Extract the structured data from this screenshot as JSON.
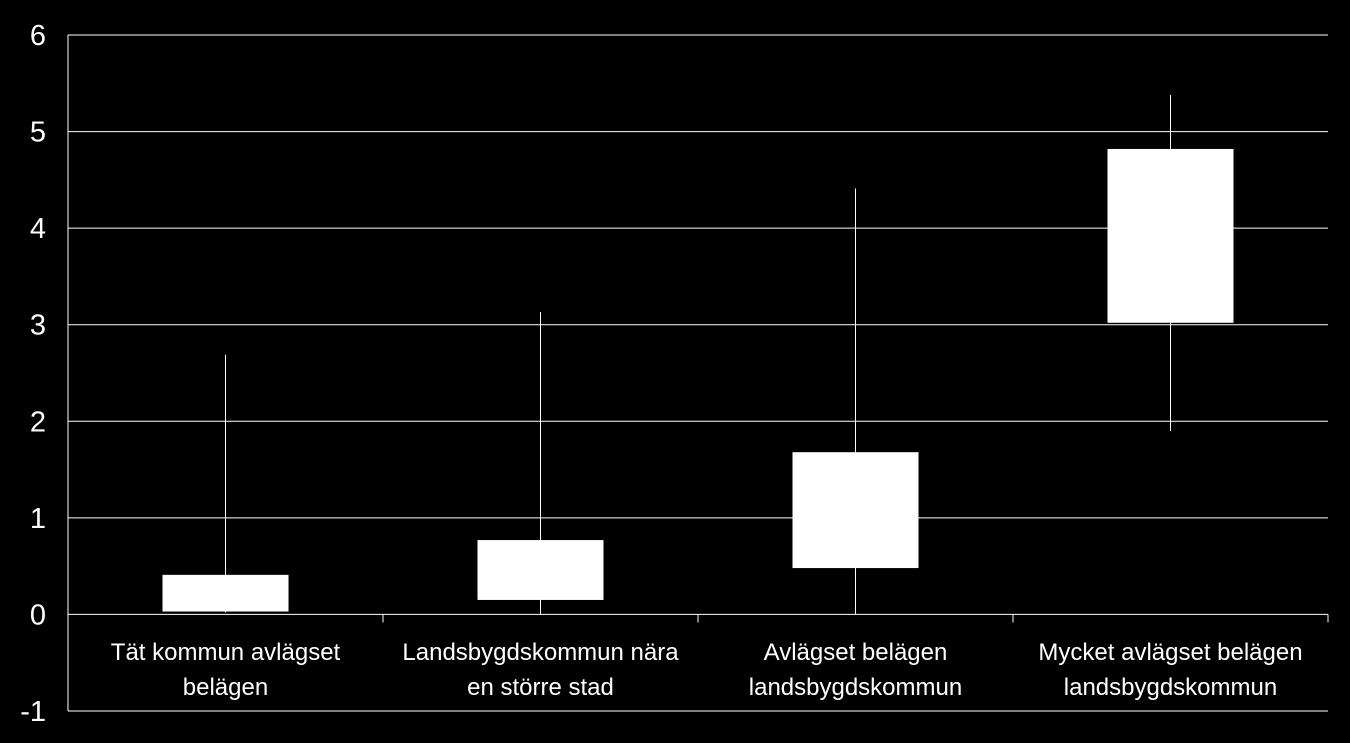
{
  "chart_data": {
    "type": "box",
    "title": "",
    "xlabel": "",
    "ylabel": "",
    "ylim": [
      -1,
      6
    ],
    "yticks": [
      "6",
      "5",
      "4",
      "3",
      "2",
      "1",
      "0",
      "-1"
    ],
    "grid": true,
    "legend": "none",
    "colors": {
      "background": "#000000",
      "box": "#ffffff",
      "grid": "#ffffff",
      "text": "#ffffff"
    },
    "categories": [
      {
        "lines": [
          "Tät kommun avlägset",
          "belägen"
        ]
      },
      {
        "lines": [
          "Landsbygdskommun nära",
          "en större stad"
        ]
      },
      {
        "lines": [
          "Avlägset belägen",
          "landsbygdskommun"
        ]
      },
      {
        "lines": [
          "Mycket avlägset belägen",
          "landsbygdskommun"
        ]
      }
    ],
    "series": [
      {
        "boxes": [
          {
            "min": 0.02,
            "q1": 0.03,
            "q3": 0.41,
            "max": 2.69
          },
          {
            "min": 0.0,
            "q1": 0.15,
            "q3": 0.77,
            "max": 3.13
          },
          {
            "min": 0.0,
            "q1": 0.48,
            "q3": 1.68,
            "max": 4.41
          },
          {
            "min": 1.9,
            "q1": 3.02,
            "q3": 4.82,
            "max": 5.38
          }
        ]
      }
    ]
  }
}
